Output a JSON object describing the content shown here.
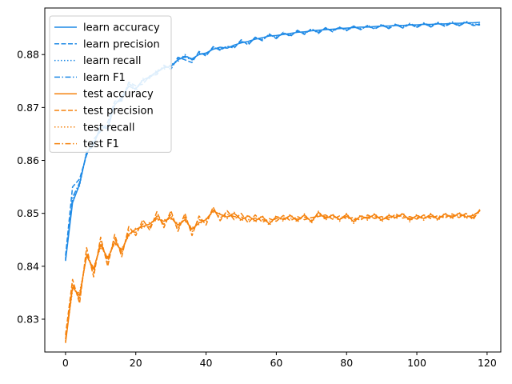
{
  "chart_data": {
    "type": "line",
    "title": "",
    "xlabel": "",
    "ylabel": "",
    "xlim": [
      -5.9,
      123.9
    ],
    "ylim": [
      0.8238,
      0.8888
    ],
    "xticks": [
      0,
      20,
      40,
      60,
      80,
      100,
      120
    ],
    "yticks": [
      0.83,
      0.84,
      0.85,
      0.86,
      0.87,
      0.88
    ],
    "grid": false,
    "legend_placement": "top-left",
    "colors": {
      "learn": "#1f8ae6",
      "test": "#f5820d"
    },
    "legend": [
      "learn accuracy",
      "learn precision",
      "learn recall",
      "learn F1",
      "test accuracy",
      "test precision",
      "test recall",
      "test F1"
    ],
    "x": [
      0,
      2,
      4,
      6,
      8,
      10,
      12,
      14,
      16,
      18,
      20,
      22,
      24,
      26,
      28,
      30,
      32,
      34,
      36,
      38,
      40,
      42,
      44,
      46,
      48,
      50,
      52,
      54,
      56,
      58,
      60,
      62,
      64,
      66,
      68,
      70,
      72,
      74,
      76,
      78,
      80,
      82,
      84,
      86,
      88,
      90,
      92,
      94,
      96,
      98,
      100,
      102,
      104,
      106,
      108,
      110,
      112,
      114,
      116,
      118
    ],
    "series": [
      {
        "name": "learn accuracy",
        "group": "learn",
        "style": "solid",
        "values": [
          0.841,
          0.852,
          0.8555,
          0.8615,
          0.863,
          0.8665,
          0.866,
          0.8705,
          0.872,
          0.874,
          0.8735,
          0.8752,
          0.8758,
          0.8768,
          0.8775,
          0.8778,
          0.879,
          0.8797,
          0.8792,
          0.88,
          0.8803,
          0.881,
          0.8814,
          0.8812,
          0.8818,
          0.8822,
          0.8825,
          0.8829,
          0.8832,
          0.8835,
          0.8836,
          0.8838,
          0.884,
          0.8842,
          0.8843,
          0.8845,
          0.8846,
          0.8847,
          0.8848,
          0.8849,
          0.885,
          0.8851,
          0.8852,
          0.8852,
          0.8853,
          0.8854,
          0.8854,
          0.8855,
          0.8855,
          0.8856,
          0.8856,
          0.8857,
          0.8857,
          0.8858,
          0.8858,
          0.8859,
          0.8859,
          0.886,
          0.886,
          0.8861
        ]
      },
      {
        "name": "learn precision",
        "group": "learn",
        "style": "dashed",
        "values": [
          0.842,
          0.855,
          0.8565,
          0.861,
          0.864,
          0.8655,
          0.8672,
          0.8712,
          0.8712,
          0.8748,
          0.8741,
          0.8744,
          0.876,
          0.8762,
          0.878,
          0.8772,
          0.8795,
          0.879,
          0.8785,
          0.8806,
          0.8797,
          0.8815,
          0.8808,
          0.8816,
          0.8812,
          0.8828,
          0.8818,
          0.8833,
          0.8826,
          0.8839,
          0.883,
          0.8842,
          0.8834,
          0.8846,
          0.8838,
          0.8849,
          0.884,
          0.8851,
          0.8843,
          0.8852,
          0.8845,
          0.8854,
          0.8847,
          0.8855,
          0.8848,
          0.8856,
          0.8849,
          0.8857,
          0.885,
          0.8858,
          0.8851,
          0.8859,
          0.8852,
          0.886,
          0.8853,
          0.886,
          0.8854,
          0.8861,
          0.8855,
          0.8856
        ]
      },
      {
        "name": "learn recall",
        "group": "learn",
        "style": "dotted",
        "values": [
          0.8415,
          0.8525,
          0.8552,
          0.8618,
          0.8626,
          0.8668,
          0.8656,
          0.8708,
          0.8717,
          0.8743,
          0.8731,
          0.8755,
          0.8755,
          0.8771,
          0.8772,
          0.8781,
          0.8787,
          0.88,
          0.8789,
          0.8803,
          0.88,
          0.8813,
          0.8811,
          0.8815,
          0.8815,
          0.8825,
          0.8822,
          0.8832,
          0.8829,
          0.8838,
          0.8833,
          0.8841,
          0.8837,
          0.8845,
          0.884,
          0.8848,
          0.8843,
          0.885,
          0.8845,
          0.8852,
          0.8847,
          0.8854,
          0.8849,
          0.8855,
          0.885,
          0.8857,
          0.8851,
          0.8858,
          0.8852,
          0.8859,
          0.8853,
          0.886,
          0.8854,
          0.8861,
          0.8855,
          0.8862,
          0.8856,
          0.8863,
          0.8857,
          0.8858
        ]
      },
      {
        "name": "learn F1",
        "group": "learn",
        "style": "dashdot",
        "values": [
          0.8412,
          0.853,
          0.8558,
          0.8612,
          0.8633,
          0.866,
          0.8664,
          0.8706,
          0.8715,
          0.8745,
          0.8737,
          0.875,
          0.8757,
          0.8766,
          0.8777,
          0.8775,
          0.8792,
          0.8795,
          0.879,
          0.8802,
          0.88,
          0.8812,
          0.881,
          0.8814,
          0.8815,
          0.8824,
          0.882,
          0.8831,
          0.8828,
          0.8837,
          0.8832,
          0.884,
          0.8836,
          0.8844,
          0.884,
          0.8847,
          0.8842,
          0.8849,
          0.8845,
          0.8851,
          0.8846,
          0.8852,
          0.8848,
          0.8853,
          0.8849,
          0.8855,
          0.885,
          0.8856,
          0.8851,
          0.8857,
          0.8852,
          0.8858,
          0.8853,
          0.8859,
          0.8854,
          0.886,
          0.8855,
          0.8861,
          0.8856,
          0.8857
        ]
      },
      {
        "name": "test accuracy",
        "group": "test",
        "style": "solid",
        "values": [
          0.8255,
          0.836,
          0.8345,
          0.842,
          0.8395,
          0.844,
          0.8415,
          0.8445,
          0.843,
          0.846,
          0.847,
          0.8475,
          0.848,
          0.849,
          0.8485,
          0.8492,
          0.8478,
          0.8488,
          0.847,
          0.8482,
          0.8488,
          0.8505,
          0.8498,
          0.8493,
          0.85,
          0.8488,
          0.8495,
          0.8486,
          0.8494,
          0.848,
          0.8494,
          0.8488,
          0.8496,
          0.8486,
          0.8497,
          0.8484,
          0.8502,
          0.849,
          0.8497,
          0.8488,
          0.8498,
          0.8484,
          0.8495,
          0.849,
          0.8498,
          0.8487,
          0.8496,
          0.8492,
          0.8499,
          0.8487,
          0.8496,
          0.849,
          0.8498,
          0.8489,
          0.8499,
          0.8492,
          0.85,
          0.8493,
          0.8496,
          0.8505
        ]
      },
      {
        "name": "test precision",
        "group": "test",
        "style": "dashed",
        "values": [
          0.827,
          0.8375,
          0.833,
          0.8435,
          0.838,
          0.8455,
          0.84,
          0.846,
          0.8418,
          0.8475,
          0.8458,
          0.8488,
          0.8468,
          0.8503,
          0.8473,
          0.8505,
          0.8466,
          0.85,
          0.8458,
          0.8495,
          0.8478,
          0.8512,
          0.8486,
          0.8505,
          0.8488,
          0.85,
          0.8482,
          0.8497,
          0.8483,
          0.849,
          0.8485,
          0.8496,
          0.8486,
          0.8494,
          0.8488,
          0.8492,
          0.8494,
          0.8497,
          0.8489,
          0.8495,
          0.849,
          0.8492,
          0.8487,
          0.8497,
          0.849,
          0.8494,
          0.8488,
          0.8499,
          0.8491,
          0.8494,
          0.8489,
          0.8497,
          0.849,
          0.8496,
          0.8491,
          0.8499,
          0.8492,
          0.85,
          0.8488,
          0.8508
        ]
      },
      {
        "name": "test recall",
        "group": "test",
        "style": "dotted",
        "values": [
          0.8258,
          0.8355,
          0.835,
          0.8418,
          0.8398,
          0.8436,
          0.8418,
          0.8442,
          0.8433,
          0.8457,
          0.8472,
          0.8472,
          0.8483,
          0.8487,
          0.8488,
          0.8489,
          0.8481,
          0.8485,
          0.8473,
          0.8479,
          0.849,
          0.8502,
          0.85,
          0.849,
          0.8502,
          0.8485,
          0.8497,
          0.8483,
          0.8496,
          0.8477,
          0.8496,
          0.8485,
          0.8498,
          0.8483,
          0.8499,
          0.8481,
          0.8504,
          0.8487,
          0.8499,
          0.8485,
          0.85,
          0.8481,
          0.8497,
          0.8487,
          0.85,
          0.8484,
          0.8498,
          0.8489,
          0.8501,
          0.8484,
          0.8498,
          0.8487,
          0.85,
          0.8486,
          0.8501,
          0.8489,
          0.8502,
          0.849,
          0.8498,
          0.8502
        ]
      },
      {
        "name": "test F1",
        "group": "test",
        "style": "dashdot",
        "values": [
          0.8262,
          0.8365,
          0.8338,
          0.8425,
          0.8388,
          0.8447,
          0.8408,
          0.8452,
          0.8424,
          0.8467,
          0.8464,
          0.848,
          0.8474,
          0.8495,
          0.8479,
          0.8498,
          0.8472,
          0.8493,
          0.8465,
          0.8488,
          0.8484,
          0.8507,
          0.8492,
          0.8498,
          0.8494,
          0.8493,
          0.8488,
          0.8491,
          0.8488,
          0.8485,
          0.849,
          0.8491,
          0.8491,
          0.8489,
          0.8493,
          0.8487,
          0.8498,
          0.8493,
          0.8494,
          0.849,
          0.8494,
          0.8488,
          0.8491,
          0.8493,
          0.8494,
          0.849,
          0.8492,
          0.8495,
          0.8495,
          0.849,
          0.8492,
          0.8493,
          0.8494,
          0.8492,
          0.8495,
          0.8495,
          0.8496,
          0.8496,
          0.8492,
          0.8506
        ]
      }
    ]
  }
}
